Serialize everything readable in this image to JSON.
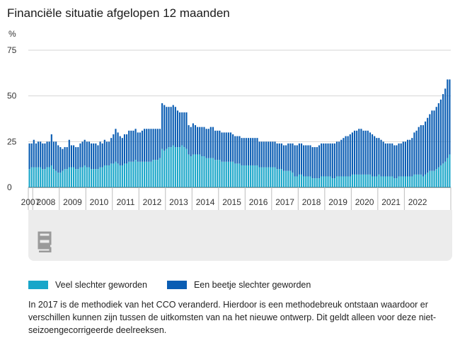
{
  "title": "Financiële situatie afgelopen 12 maanden",
  "unit": "%",
  "legend": [
    {
      "label": "Veel slechter geworden",
      "color": "#19a6c9"
    },
    {
      "label": "Een beetje slechter geworden",
      "color": "#0a5db3"
    }
  ],
  "note": "In 2017 is de methodiek van het CCO veranderd. Hierdoor is een methodebreuk ontstaan waardoor er verschillen kunnen zijn tussen de uitkomsten van na het nieuwe ontwerp. Dit geldt alleen voor deze niet-seizoengecorrigeerde deelreeksen.",
  "logo_icon": "cbs-logo-icon",
  "chart_data": {
    "type": "bar",
    "stacked": true,
    "title": "Financiële situatie afgelopen 12 maanden",
    "ylabel": "%",
    "ylim": [
      0,
      75
    ],
    "yticks": [
      0,
      25,
      50,
      75
    ],
    "grid": true,
    "x_tick_labels": [
      "2007",
      "2008",
      "2009",
      "2010",
      "2011",
      "2012",
      "2013",
      "2014",
      "2015",
      "2016",
      "2017",
      "2018",
      "2019",
      "2020",
      "2021",
      "2022"
    ],
    "x_start": "2007-11",
    "x_end": "2022-10",
    "series": [
      {
        "name": "Veel slechter geworden",
        "color": "#19a6c9",
        "values": [
          10,
          11,
          11,
          11,
          11,
          11,
          10,
          10,
          11,
          11,
          12,
          10,
          9,
          8,
          8,
          9,
          10,
          10,
          11,
          11,
          11,
          10,
          10,
          11,
          11,
          12,
          11,
          11,
          10,
          10,
          10,
          10,
          11,
          11,
          12,
          12,
          12,
          13,
          13,
          14,
          13,
          12,
          12,
          13,
          13,
          14,
          14,
          14,
          15,
          14,
          14,
          14,
          14,
          14,
          14,
          14,
          15,
          15,
          15,
          16,
          21,
          20,
          21,
          22,
          22,
          23,
          22,
          22,
          22,
          23,
          22,
          21,
          18,
          17,
          18,
          18,
          18,
          18,
          17,
          17,
          16,
          16,
          16,
          16,
          15,
          15,
          15,
          14,
          14,
          14,
          14,
          14,
          14,
          13,
          13,
          13,
          12,
          12,
          12,
          12,
          12,
          12,
          12,
          12,
          11,
          11,
          11,
          11,
          11,
          11,
          11,
          11,
          10,
          10,
          10,
          9,
          9,
          9,
          9,
          8,
          6,
          6,
          7,
          7,
          6,
          6,
          6,
          6,
          5,
          5,
          5,
          5,
          6,
          6,
          6,
          6,
          6,
          5,
          5,
          6,
          6,
          6,
          6,
          6,
          6,
          6,
          7,
          7,
          7,
          7,
          7,
          7,
          7,
          7,
          7,
          6,
          6,
          6,
          7,
          6,
          6,
          6,
          6,
          6,
          6,
          5,
          5,
          6,
          6,
          6,
          6,
          6,
          6,
          6,
          7,
          7,
          7,
          7,
          6,
          7,
          8,
          9,
          9,
          9,
          10,
          11,
          12,
          13,
          14,
          16,
          18
        ]
      },
      {
        "name": "Een beetje slechter geworden",
        "color": "#0a5db3",
        "values": [
          14,
          13,
          15,
          13,
          14,
          14,
          14,
          14,
          14,
          14,
          17,
          15,
          16,
          15,
          14,
          12,
          12,
          12,
          15,
          12,
          12,
          12,
          12,
          13,
          14,
          14,
          14,
          14,
          14,
          14,
          14,
          13,
          14,
          13,
          14,
          13,
          13,
          14,
          16,
          18,
          17,
          16,
          15,
          16,
          16,
          17,
          17,
          17,
          17,
          16,
          16,
          17,
          18,
          18,
          18,
          18,
          17,
          17,
          17,
          16,
          25,
          25,
          23,
          22,
          22,
          22,
          22,
          20,
          19,
          18,
          19,
          20,
          16,
          16,
          17,
          16,
          15,
          15,
          16,
          16,
          16,
          16,
          17,
          17,
          16,
          16,
          16,
          16,
          16,
          16,
          16,
          16,
          15,
          15,
          15,
          15,
          15,
          15,
          15,
          15,
          15,
          15,
          15,
          15,
          14,
          14,
          14,
          14,
          14,
          14,
          14,
          14,
          14,
          14,
          14,
          14,
          14,
          15,
          15,
          16,
          17,
          17,
          17,
          17,
          17,
          17,
          17,
          17,
          17,
          17,
          17,
          18,
          18,
          18,
          18,
          18,
          18,
          19,
          19,
          19,
          19,
          20,
          21,
          22,
          22,
          23,
          23,
          24,
          24,
          25,
          25,
          24,
          24,
          24,
          23,
          23,
          22,
          21,
          20,
          20,
          19,
          18,
          18,
          18,
          18,
          18,
          18,
          18,
          18,
          19,
          19,
          20,
          20,
          21,
          23,
          24,
          26,
          27,
          28,
          29,
          30,
          31,
          33,
          33,
          34,
          35,
          36,
          38,
          40,
          43,
          41
        ]
      }
    ]
  }
}
